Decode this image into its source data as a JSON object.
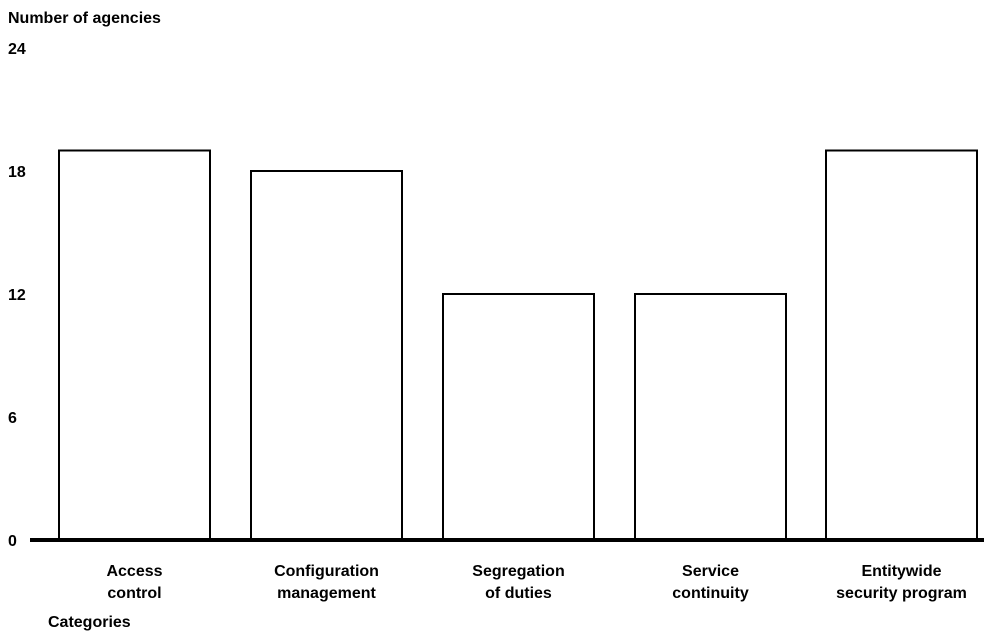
{
  "chart_data": {
    "type": "bar",
    "title": "",
    "ylabel": "Number of agencies",
    "xlabel": "Categories",
    "ylim": [
      0,
      24
    ],
    "yticks": [
      "0",
      "6",
      "12",
      "18",
      "24"
    ],
    "categories": [
      [
        "Access",
        "control"
      ],
      [
        "Configuration",
        "management"
      ],
      [
        "Segregation",
        "of duties"
      ],
      [
        "Service",
        "continuity"
      ],
      [
        "Entitywide",
        "security program"
      ]
    ],
    "values": [
      19,
      18,
      12,
      12,
      19
    ],
    "grid": false,
    "colors": {
      "bar_fill": "#ffffff",
      "bar_stroke": "#000000",
      "axis": "#000000"
    }
  }
}
